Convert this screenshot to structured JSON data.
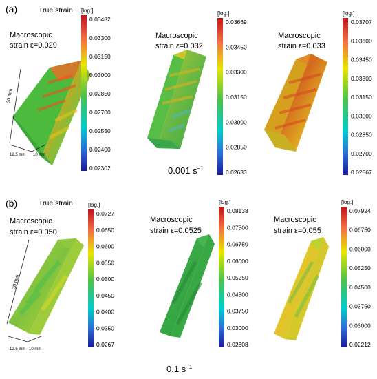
{
  "rows": [
    {
      "label": "(a)",
      "rate": "0.001 s",
      "rate_exp": "−1",
      "true_strain": "True strain",
      "length_dim": "30 mm",
      "width_dims": [
        "12.5 mm",
        "10 mm"
      ],
      "panels": [
        {
          "line1": "Macroscopic",
          "line2": "strain ε=0.029",
          "unit": "[log.]",
          "ticks": [
            "0.03482",
            "0.03300",
            "0.03150",
            "0.03000",
            "0.02850",
            "0.02700",
            "0.02550",
            "0.02400",
            "0.02302"
          ]
        },
        {
          "line1": "Macroscopic",
          "line2": "strain ε=0.032",
          "unit": "[log.]",
          "ticks": [
            "0.03669",
            "0.03450",
            "0.03300",
            "0.03150",
            "0.03000",
            "0.02850",
            "0.02633"
          ]
        },
        {
          "line1": "Macroscopic",
          "line2": "strain ε=0.033",
          "unit": "[log.]",
          "ticks": [
            "0.03707",
            "0.03600",
            "0.03450",
            "0.03300",
            "0.03150",
            "0.03000",
            "0.02850",
            "0.02700",
            "0.02567"
          ]
        }
      ]
    },
    {
      "label": "(b)",
      "rate": "0.1 s",
      "rate_exp": "−1",
      "true_strain": "True strain",
      "length_dim": "30 mm",
      "width_dims": [
        "12.5 mm",
        "10 mm"
      ],
      "panels": [
        {
          "line1": "Macroscopic",
          "line2": "strain ε=0.050",
          "unit": "[log.]",
          "ticks": [
            "0.0727",
            "0.0650",
            "0.0600",
            "0.0550",
            "0.0500",
            "0.0450",
            "0.0400",
            "0.0350",
            "0.0267"
          ]
        },
        {
          "line1": "Macroscopic",
          "line2": "strain ε=0.0525",
          "unit": "[log.]",
          "ticks": [
            "0.08138",
            "0.07500",
            "0.06750",
            "0.06000",
            "0.05250",
            "0.04500",
            "0.03750",
            "0.03000",
            "0.02308"
          ]
        },
        {
          "line1": "Macroscopic",
          "line2": "strain ε=0.055",
          "unit": "[log.]",
          "ticks": [
            "0.07924",
            "0.06750",
            "0.06000",
            "0.05250",
            "0.04500",
            "0.03750",
            "0.03000",
            "0.02212"
          ]
        }
      ]
    }
  ],
  "colors": {
    "scale": [
      "#d7191c",
      "#f46d43",
      "#fdae61",
      "#e6e600",
      "#66bd63",
      "#1a9850",
      "#00c8c8",
      "#2c7bb6",
      "#1a1aa0"
    ]
  }
}
